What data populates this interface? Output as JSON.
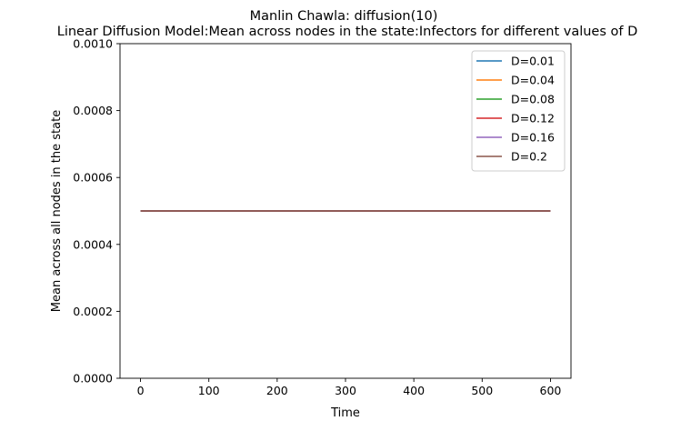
{
  "chart_data": {
    "type": "line",
    "title": "Manlin Chawla: diffusion(10)",
    "subtitle": "Linear Diffusion Model:Mean across nodes in the state:Infectors for different values of D",
    "xlabel": "Time",
    "ylabel": "Mean across all nodes in the state",
    "xlim": [
      -30,
      630
    ],
    "ylim": [
      0,
      0.001
    ],
    "xticks": [
      0,
      100,
      200,
      300,
      400,
      500,
      600
    ],
    "xtick_labels": [
      "0",
      "100",
      "200",
      "300",
      "400",
      "500",
      "600"
    ],
    "yticks": [
      0,
      0.0002,
      0.0004,
      0.0006,
      0.0008,
      0.001
    ],
    "ytick_labels": [
      "0.0000",
      "0.0002",
      "0.0004",
      "0.0006",
      "0.0008",
      "0.0010"
    ],
    "grid": false,
    "legend_position": "top-right",
    "series": [
      {
        "name": "D=0.01",
        "color": "#1f77b4",
        "x": [
          0,
          600
        ],
        "y": [
          0.0005,
          0.0005
        ]
      },
      {
        "name": "D=0.04",
        "color": "#ff7f0e",
        "x": [
          0,
          600
        ],
        "y": [
          0.0005,
          0.0005
        ]
      },
      {
        "name": "D=0.08",
        "color": "#2ca02c",
        "x": [
          0,
          600
        ],
        "y": [
          0.0005,
          0.0005
        ]
      },
      {
        "name": "D=0.12",
        "color": "#d62728",
        "x": [
          0,
          600
        ],
        "y": [
          0.0005,
          0.0005
        ]
      },
      {
        "name": "D=0.16",
        "color": "#9467bd",
        "x": [
          0,
          600
        ],
        "y": [
          0.0005,
          0.0005
        ]
      },
      {
        "name": "D=0.2",
        "color": "#8c564b",
        "x": [
          0,
          600
        ],
        "y": [
          0.0005,
          0.0005
        ]
      }
    ]
  }
}
